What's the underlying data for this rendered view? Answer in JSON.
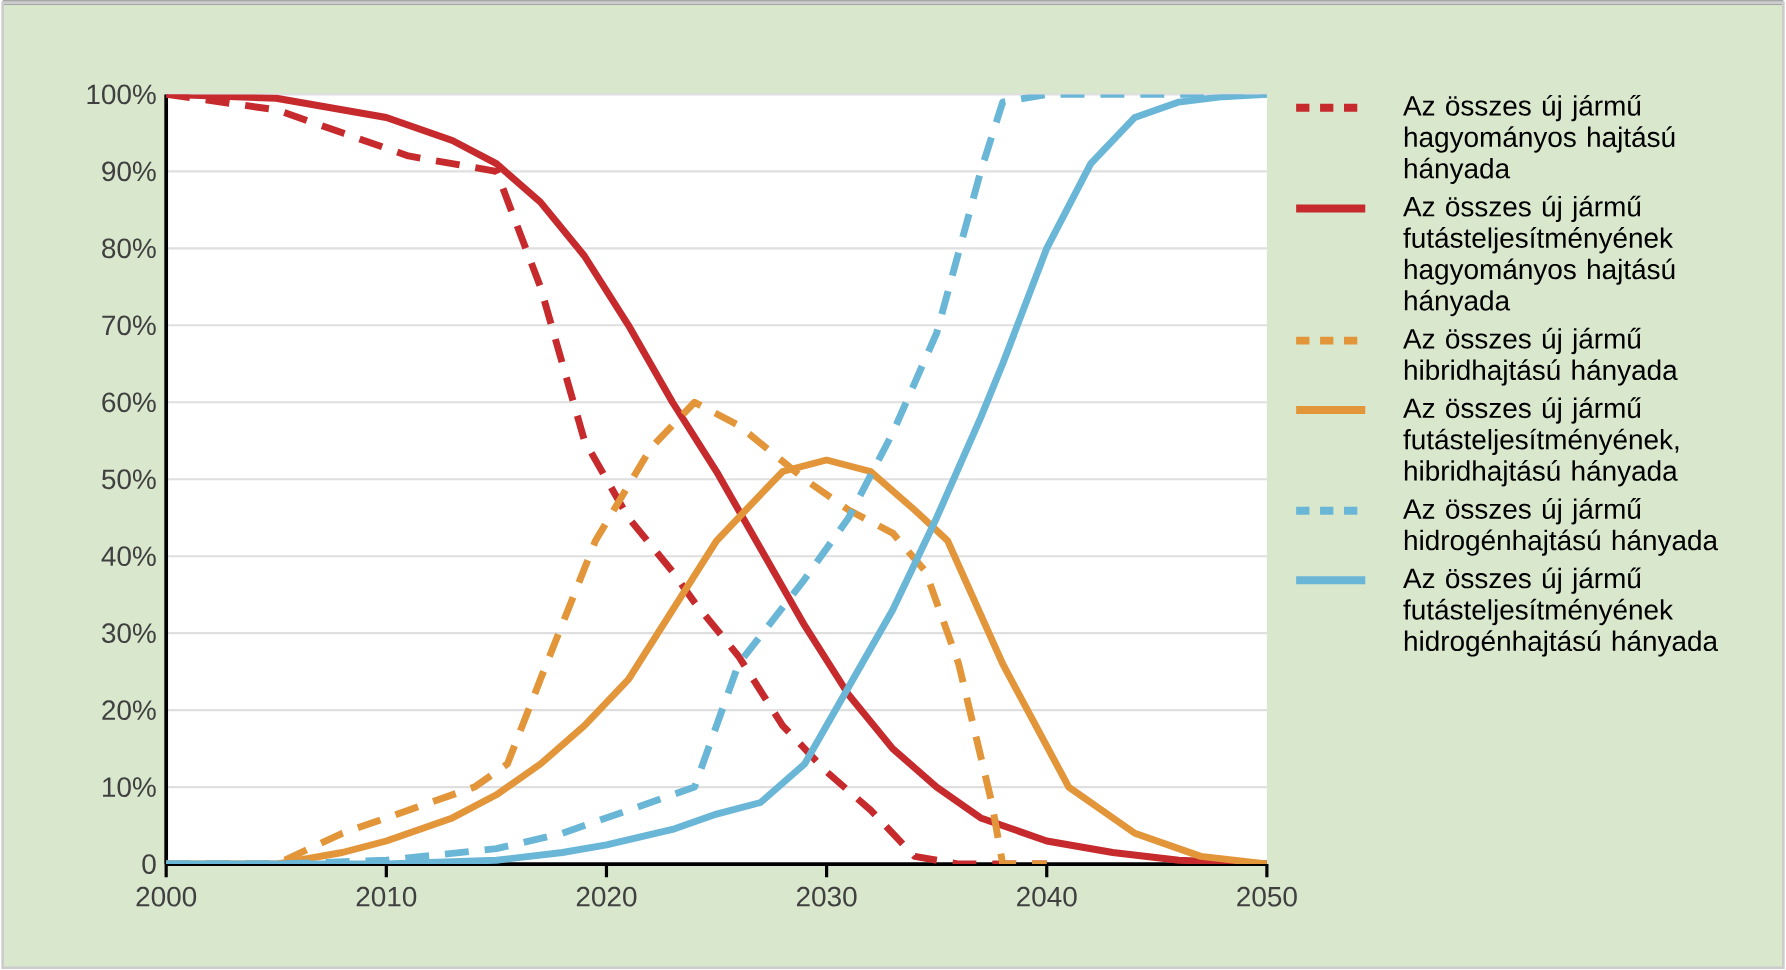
{
  "chart_data": {
    "type": "line",
    "xlim": [
      2000,
      2050
    ],
    "ylim": [
      0,
      100
    ],
    "xticks": [
      2000,
      2010,
      2020,
      2030,
      2040,
      2050
    ],
    "yticks": [
      {
        "value": 0,
        "label": "0"
      },
      {
        "value": 10,
        "label": "10%"
      },
      {
        "value": 20,
        "label": "20%"
      },
      {
        "value": 30,
        "label": "30%"
      },
      {
        "value": 40,
        "label": "40%"
      },
      {
        "value": 50,
        "label": "50%"
      },
      {
        "value": 60,
        "label": "60%"
      },
      {
        "value": 70,
        "label": "70%"
      },
      {
        "value": 80,
        "label": "80%"
      },
      {
        "value": 90,
        "label": "90%"
      },
      {
        "value": 100,
        "label": "100%"
      }
    ],
    "grid": "y",
    "legend": "right",
    "marker": "none",
    "series": [
      {
        "name": "Az összes új jármű hagyományos hajtású hányada",
        "color": "#c62a2c",
        "line_style": "dashed",
        "x": [
          2000,
          2005,
          2008,
          2011,
          2015,
          2017,
          2019,
          2021,
          2023,
          2024,
          2026,
          2028,
          2030,
          2032,
          2034,
          2036,
          2040
        ],
        "values": [
          100,
          98,
          95,
          92,
          90,
          75,
          55,
          45,
          38,
          34,
          27,
          18,
          12,
          7,
          1,
          0,
          0
        ]
      },
      {
        "name": "Az összes új jármű futásteljesítményének hagyományos hajtású hányada",
        "color": "#c62a2c",
        "line_style": "solid",
        "x": [
          2000,
          2005,
          2010,
          2013,
          2015,
          2017,
          2019,
          2021,
          2023,
          2025,
          2027,
          2029,
          2031,
          2033,
          2035,
          2037,
          2040,
          2043,
          2046,
          2050
        ],
        "values": [
          100,
          99.5,
          97,
          94,
          91,
          86,
          79,
          70,
          60,
          51,
          41,
          31,
          22,
          15,
          10,
          6,
          3,
          1.5,
          0.5,
          0
        ]
      },
      {
        "name": "Az összes új jármű hibridhajtású hányada",
        "color": "#e3953a",
        "line_style": "dashed",
        "x": [
          2000,
          2005,
          2008,
          2011,
          2014,
          2015.5,
          2017,
          2019.5,
          2022,
          2024,
          2026,
          2029,
          2031,
          2033,
          2034.5,
          2036,
          2037.5,
          2038,
          2040
        ],
        "values": [
          0,
          0,
          4,
          7,
          10,
          13,
          24,
          42,
          54,
          60,
          57,
          50,
          46,
          43,
          38,
          26,
          8,
          0,
          0
        ]
      },
      {
        "name": "Az összes új jármű futásteljesítményének, hibridhajtású hányada",
        "color": "#e3953a",
        "line_style": "solid",
        "x": [
          2000,
          2005,
          2008,
          2010,
          2013,
          2015,
          2017,
          2019,
          2021,
          2023,
          2025,
          2027,
          2028,
          2030,
          2032,
          2034,
          2035.5,
          2038,
          2041,
          2044,
          2047,
          2050
        ],
        "values": [
          0,
          0,
          1.5,
          3,
          6,
          9,
          13,
          18,
          24,
          33,
          42,
          48,
          51,
          52.5,
          51,
          46,
          42,
          26,
          10,
          4,
          1,
          0
        ]
      },
      {
        "name": "Az összes új jármű hidrogénhajtású hányada",
        "color": "#6ab6d6",
        "line_style": "dashed",
        "x": [
          2000,
          2005,
          2010,
          2015,
          2018,
          2021,
          2024,
          2026,
          2029,
          2031,
          2033,
          2035,
          2037,
          2038,
          2040,
          2045,
          2050
        ],
        "values": [
          0,
          0,
          0.5,
          2,
          4,
          7,
          10,
          26,
          37,
          45,
          56,
          69,
          90,
          99,
          100,
          100,
          100
        ]
      },
      {
        "name": "Az összes új jármű futásteljesítményének hidrogénhajtású hányada",
        "color": "#6ab6d6",
        "line_style": "solid",
        "x": [
          2000,
          2005,
          2010,
          2015,
          2018,
          2020,
          2023,
          2025,
          2027,
          2029,
          2031,
          2033,
          2035,
          2037,
          2038,
          2040,
          2042,
          2044,
          2046,
          2048,
          2050
        ],
        "values": [
          0,
          0,
          0,
          0.5,
          1.5,
          2.5,
          4.5,
          6.5,
          8,
          13,
          23,
          33,
          45,
          58,
          65,
          80,
          91,
          97,
          99,
          99.7,
          100
        ]
      }
    ]
  }
}
